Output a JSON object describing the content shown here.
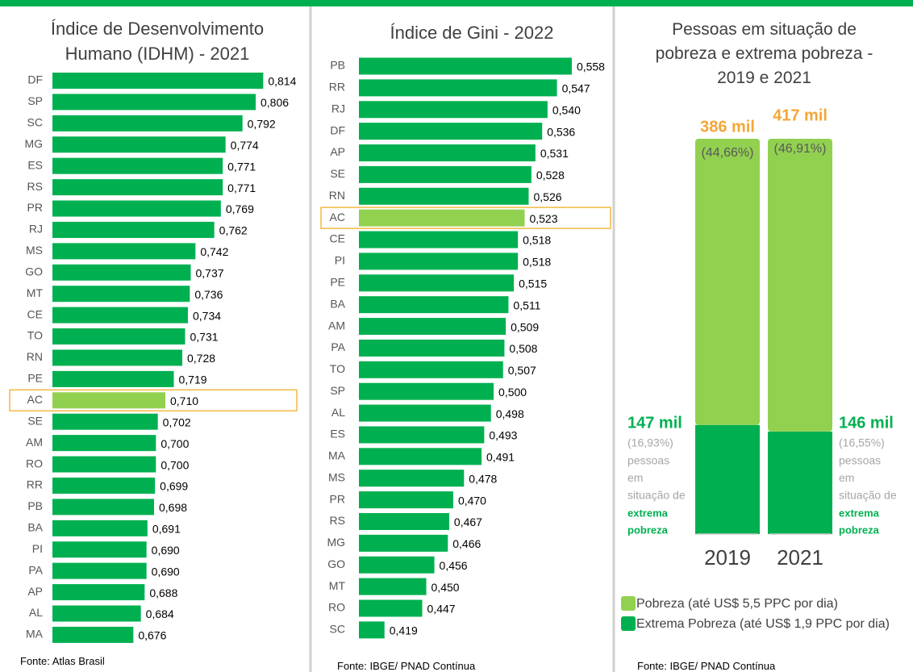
{
  "chart_data": [
    {
      "type": "hbar",
      "title": "Índice de Desenvolvimento Humano (IDHM) - 2021",
      "categories": [
        "DF",
        "SP",
        "SC",
        "MG",
        "ES",
        "RS",
        "PR",
        "RJ",
        "MS",
        "GO",
        "MT",
        "CE",
        "TO",
        "RN",
        "PE",
        "AC",
        "SE",
        "AM",
        "RO",
        "RR",
        "PB",
        "BA",
        "PI",
        "PA",
        "AP",
        "AL",
        "MA"
      ],
      "values": [
        0.814,
        0.806,
        0.792,
        0.774,
        0.771,
        0.771,
        0.769,
        0.762,
        0.742,
        0.737,
        0.736,
        0.734,
        0.731,
        0.728,
        0.719,
        0.71,
        0.702,
        0.7,
        0.7,
        0.699,
        0.698,
        0.691,
        0.69,
        0.69,
        0.688,
        0.684,
        0.676
      ],
      "value_labels": [
        "0,814",
        "0,806",
        "0,792",
        "0,774",
        "0,771",
        "0,771",
        "0,769",
        "0,762",
        "0,742",
        "0,737",
        "0,736",
        "0,734",
        "0,731",
        "0,728",
        "0,719",
        "0,710",
        "0,702",
        "0,700",
        "0,700",
        "0,699",
        "0,698",
        "0,691",
        "0,690",
        "0,690",
        "0,688",
        "0,684",
        "0,676"
      ],
      "xlim": [
        0.59,
        0.83
      ],
      "color": "#00b050",
      "highlight": "AC",
      "highlight_color": "#92d050",
      "source": "Fonte: Atlas Brasil"
    },
    {
      "type": "hbar",
      "title": "Índice de Gini - 2022",
      "categories": [
        "PB",
        "RR",
        "RJ",
        "DF",
        "AP",
        "SE",
        "RN",
        "AC",
        "CE",
        "PI",
        "PE",
        "BA",
        "AM",
        "PA",
        "TO",
        "SP",
        "AL",
        "ES",
        "MA",
        "MS",
        "PR",
        "RS",
        "MG",
        "GO",
        "MT",
        "RO",
        "SC"
      ],
      "values": [
        0.558,
        0.547,
        0.54,
        0.536,
        0.531,
        0.528,
        0.526,
        0.523,
        0.518,
        0.518,
        0.515,
        0.511,
        0.509,
        0.508,
        0.507,
        0.5,
        0.498,
        0.493,
        0.491,
        0.478,
        0.47,
        0.467,
        0.466,
        0.456,
        0.45,
        0.447,
        0.419
      ],
      "value_labels": [
        "0,558",
        "0,547",
        "0,540",
        "0,536",
        "0,531",
        "0,528",
        "0,526",
        "0,523",
        "0,518",
        "0,518",
        "0,515",
        "0,511",
        "0,509",
        "0,508",
        "0,507",
        "0,500",
        "0,498",
        "0,493",
        "0,491",
        "0,478",
        "0,470",
        "0,467",
        "0,466",
        "0,456",
        "0,450",
        "0,447",
        "0,419"
      ],
      "xlim": [
        0.4,
        0.57
      ],
      "color": "#00b050",
      "highlight": "AC",
      "highlight_color": "#92d050",
      "source": "Fonte: IBGE/ PNAD Contínua"
    },
    {
      "type": "stacked_bar",
      "stacking": "percent",
      "title": "Pessoas em situação de pobreza e extrema pobreza - 2019 e 2021",
      "categories": [
        "2019",
        "2021"
      ],
      "series": [
        {
          "name": "Extrema Pobreza (até US$ 1,9 PPC por dia)",
          "color": "#00b050",
          "values": [
            147,
            146
          ],
          "value_labels": [
            "147 mil",
            "146 mil"
          ],
          "percent_labels": [
            "(16,93%)",
            "(16,55%)"
          ]
        },
        {
          "name": "Pobreza (até US$ 5,5 PPC por dia)",
          "color": "#92d050",
          "values": [
            386,
            417
          ],
          "value_labels": [
            "386 mil",
            "417 mil"
          ],
          "percent_labels": [
            "(44,66%)",
            "(46,91%)"
          ]
        }
      ],
      "annotation": [
        "pessoas",
        "em",
        "situação de"
      ],
      "annotation_emphasis": [
        "extrema",
        "pobreza"
      ],
      "source": "Fonte: IBGE/ PNAD Contínua"
    }
  ]
}
